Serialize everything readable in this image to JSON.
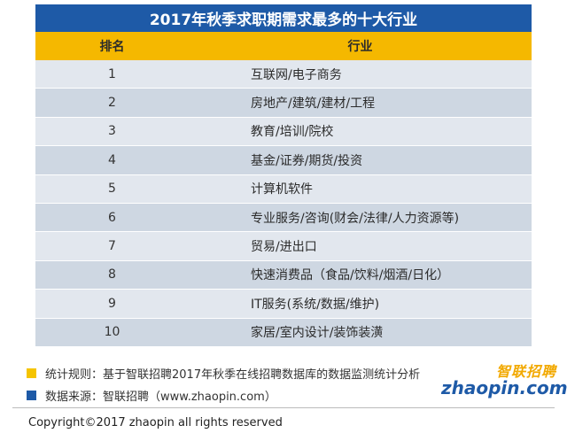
{
  "table": {
    "title": "2017年秋季求职期需求最多的十大行业",
    "headers": {
      "rank": "排名",
      "industry": "行业"
    },
    "rows": [
      {
        "rank": "1",
        "industry": "互联网/电子商务"
      },
      {
        "rank": "2",
        "industry": "房地产/建筑/建材/工程"
      },
      {
        "rank": "3",
        "industry": "教育/培训/院校"
      },
      {
        "rank": "4",
        "industry": "基金/证券/期货/投资"
      },
      {
        "rank": "5",
        "industry": "计算机软件"
      },
      {
        "rank": "6",
        "industry": "专业服务/咨询(财会/法律/人力资源等)"
      },
      {
        "rank": "7",
        "industry": "贸易/进出口"
      },
      {
        "rank": "8",
        "industry": "快速消费品（食品/饮料/烟酒/日化）"
      },
      {
        "rank": "9",
        "industry": "IT服务(系统/数据/维护)"
      },
      {
        "rank": "10",
        "industry": "家居/室内设计/装饰装潢"
      }
    ]
  },
  "notes": {
    "rule": "统计规则：基于智联招聘2017年秋季在线招聘数据库的数据监测统计分析",
    "source": "数据来源：智联招聘（www.zhaopin.com）"
  },
  "logo": {
    "cn": "智联招聘",
    "en": "zhaopin.com"
  },
  "copyright": "Copyright©2017 zhaopin all rights reserved",
  "colors": {
    "title_bg": "#1e5aa7",
    "header_bg": "#f5b800",
    "row_light": "#e2e7ee",
    "row_dark": "#ced7e2"
  }
}
